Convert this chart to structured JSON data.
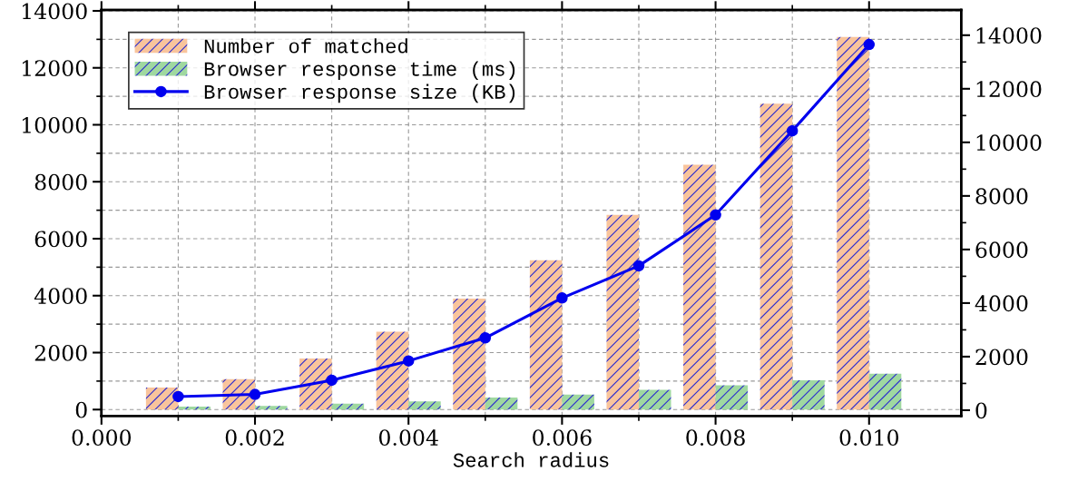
{
  "chart_data": {
    "type": "bar",
    "xlabel": "Search radius",
    "x": [
      0.001,
      0.002,
      0.003,
      0.004,
      0.005,
      0.006,
      0.007,
      0.008,
      0.009,
      0.01
    ],
    "series": [
      {
        "name": "Number of matched",
        "color": "#f9c49c",
        "values": [
          770,
          1070,
          1790,
          2730,
          3900,
          5240,
          6840,
          8600,
          10740,
          13080
        ]
      },
      {
        "name": "Browser response time (ms)",
        "color": "#9fd8a0",
        "values": [
          100,
          130,
          210,
          290,
          420,
          530,
          690,
          850,
          1030,
          1260
        ]
      },
      {
        "name": "Browser response size (KB)",
        "type": "line",
        "axis": "y2",
        "color": "#0000ee",
        "marker": "circle",
        "line_style": "solid",
        "values": [
          510,
          590,
          1120,
          1840,
          2700,
          4190,
          5390,
          7290,
          10430,
          13650
        ]
      }
    ],
    "xlim": [
      0,
      0.0112
    ],
    "xticks": [
      {
        "value": 0,
        "label": "0.000"
      },
      {
        "value": 0.001,
        "label": null
      },
      {
        "value": 0.002,
        "label": "0.002"
      },
      {
        "value": 0.003,
        "label": null
      },
      {
        "value": 0.004,
        "label": "0.004"
      },
      {
        "value": 0.005,
        "label": null
      },
      {
        "value": 0.006,
        "label": "0.006"
      },
      {
        "value": 0.007,
        "label": null
      },
      {
        "value": 0.008,
        "label": "0.008"
      },
      {
        "value": 0.009,
        "label": null
      },
      {
        "value": 0.01,
        "label": "0.010"
      }
    ],
    "ylim": [
      -220,
      14030
    ],
    "yticks": [
      0,
      {
        "value": 1000,
        "label": null
      },
      2000,
      {
        "value": 3000,
        "label": null
      },
      4000,
      {
        "value": 5000,
        "label": null
      },
      6000,
      {
        "value": 7000,
        "label": null
      },
      8000,
      {
        "value": 9000,
        "label": null
      },
      10000,
      {
        "value": 11000,
        "label": null
      },
      12000,
      {
        "value": 13000,
        "label": null
      },
      14000
    ],
    "y2lim": [
      -210,
      14940
    ],
    "y2ticks": [
      0,
      {
        "value": 1000,
        "label": null
      },
      2000,
      {
        "value": 3000,
        "label": null
      },
      4000,
      {
        "value": 5000,
        "label": null
      },
      6000,
      {
        "value": 7000,
        "label": null
      },
      8000,
      {
        "value": 9000,
        "label": null
      },
      10000,
      {
        "value": 11000,
        "label": null
      },
      12000,
      {
        "value": 13000,
        "label": null
      },
      14000
    ],
    "grid": true,
    "legend": "top left"
  }
}
